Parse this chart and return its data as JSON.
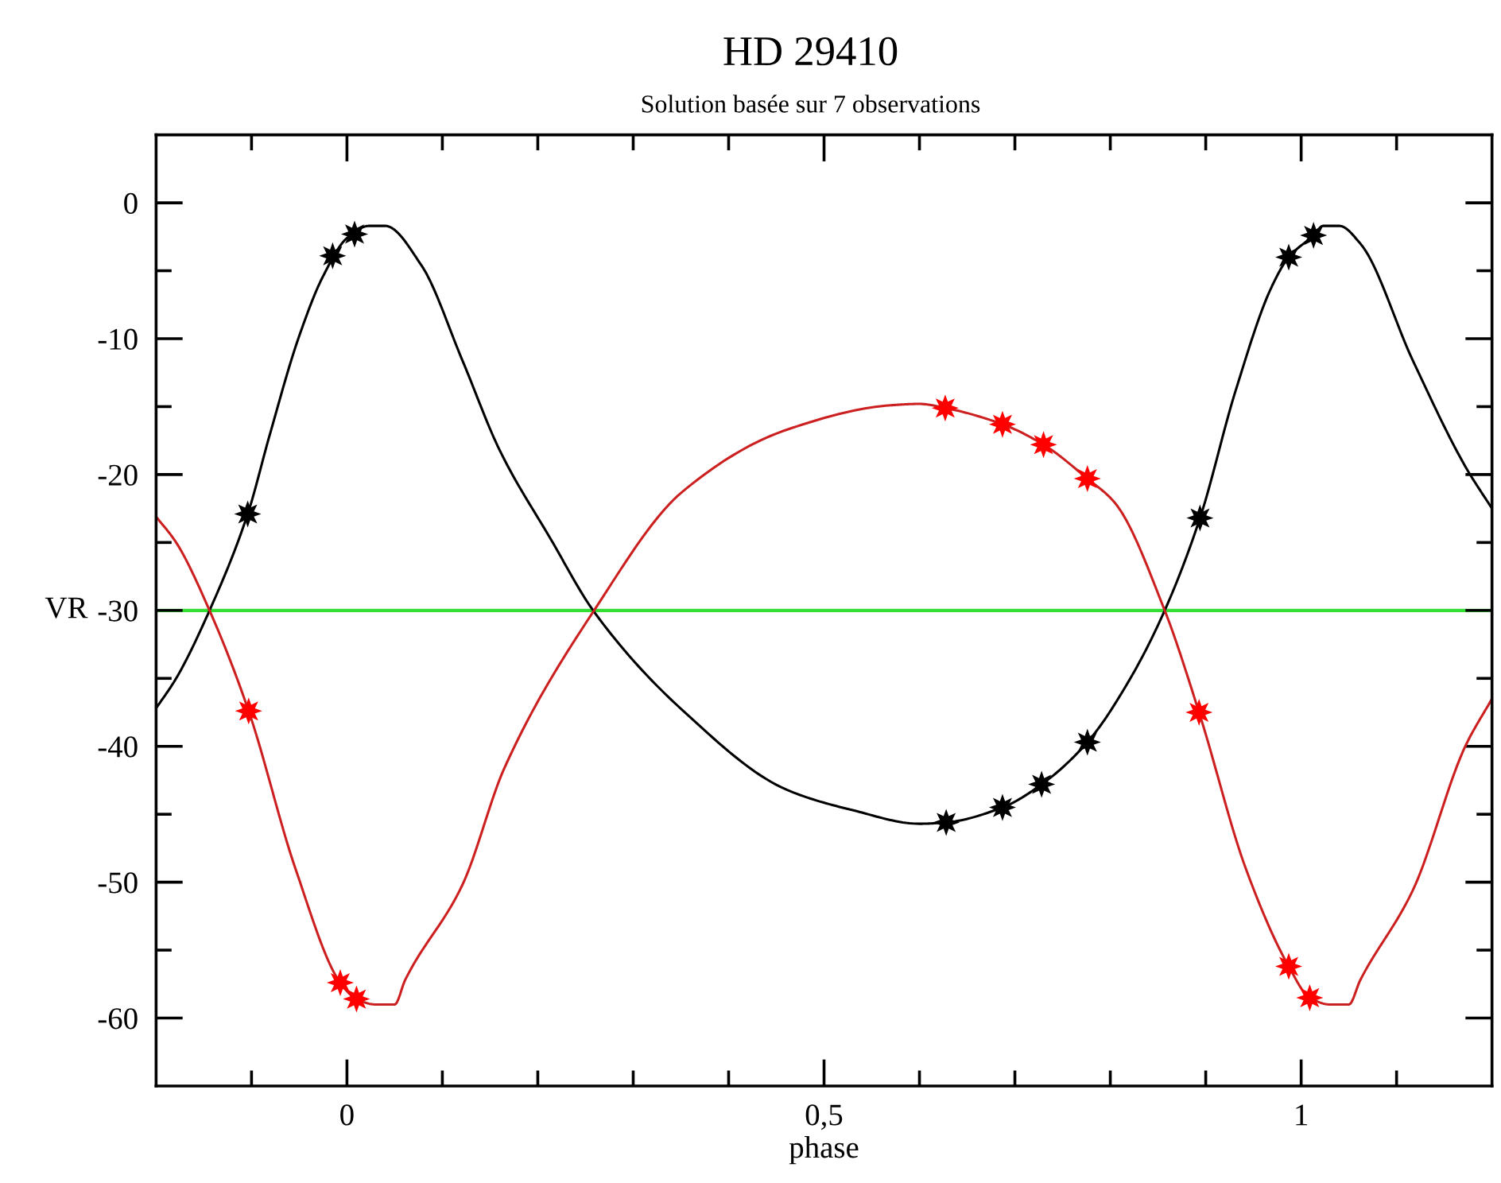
{
  "chart_data": {
    "type": "line",
    "title": "HD 29410",
    "subtitle": "Solution basée sur 7 observations",
    "xlabel": "phase",
    "ylabel": "VR",
    "xlim": [
      -0.2,
      1.2
    ],
    "ylim": [
      -65,
      5
    ],
    "xticks": [
      {
        "value": -0.1,
        "label": null
      },
      0,
      {
        "value": 0.1,
        "label": null
      },
      {
        "value": 0.2,
        "label": null
      },
      {
        "value": 0.3,
        "label": null
      },
      {
        "value": 0.4,
        "label": null
      },
      {
        "value": 0.5,
        "label": "0,5"
      },
      {
        "value": 0.6,
        "label": null
      },
      {
        "value": 0.7,
        "label": null
      },
      {
        "value": 0.8,
        "label": null
      },
      {
        "value": 0.9,
        "label": null
      },
      1,
      {
        "value": 1.1,
        "label": null
      }
    ],
    "yticks": [
      -60,
      {
        "value": -55,
        "label": null
      },
      -50,
      {
        "value": -45,
        "label": null
      },
      -40,
      {
        "value": -35,
        "label": null
      },
      -30,
      {
        "value": -25,
        "label": null
      },
      -20,
      {
        "value": -15,
        "label": null
      },
      -10,
      {
        "value": -5,
        "label": null
      },
      0
    ],
    "grid": false,
    "legend": false,
    "ref_lines": [
      {
        "axis": "y",
        "value": -30,
        "color": "#33dd33"
      }
    ],
    "series": [
      {
        "color": "#000000",
        "marker": "none",
        "x": [
          -0.2,
          -0.179,
          -0.144,
          -0.104,
          -0.081,
          -0.051,
          -0.025,
          0.0,
          0.023,
          0.04,
          0.078,
          0.121,
          0.16,
          0.214,
          0.259,
          0.351,
          0.461,
          0.53,
          0.6,
          0.628,
          0.687,
          0.728,
          0.776,
          0.821,
          0.857,
          0.894,
          0.931,
          0.969,
          0.987,
          1.013,
          1.023,
          1.04,
          1.062,
          1.117,
          1.172,
          1.2
        ],
        "values": [
          -37.2,
          -35.0,
          -30.0,
          -22.9,
          -17.1,
          -10.0,
          -5.4,
          -2.6,
          -1.7,
          -1.7,
          -4.6,
          -11.6,
          -18.2,
          -24.8,
          -30.1,
          -37.3,
          -43.2,
          -44.7,
          -45.7,
          -45.6,
          -44.5,
          -42.8,
          -39.7,
          -35.0,
          -30.0,
          -23.2,
          -13.9,
          -6.2,
          -4.0,
          -2.4,
          -1.7,
          -1.7,
          -3.0,
          -11.6,
          -19.4,
          -22.5
        ]
      },
      {
        "type": "scatter",
        "color": "#000000",
        "marker": "star",
        "x": [
          -0.104,
          -0.015,
          0.008,
          0.628,
          0.687,
          0.728,
          0.776,
          0.894,
          0.987,
          1.013
        ],
        "values": [
          -22.9,
          -3.9,
          -2.3,
          -45.6,
          -44.5,
          -42.8,
          -39.7,
          -23.2,
          -4.0,
          -2.4
        ]
      },
      {
        "color": "#cc2020",
        "marker": "none",
        "x": [
          -0.2,
          -0.179,
          -0.144,
          -0.103,
          -0.054,
          -0.007,
          0.01,
          0.03,
          0.05,
          0.061,
          0.121,
          0.165,
          0.259,
          0.351,
          0.461,
          0.57,
          0.6,
          0.627,
          0.687,
          0.73,
          0.776,
          0.805,
          0.857,
          0.893,
          0.942,
          0.987,
          1.009,
          1.03,
          1.05,
          1.062,
          1.117,
          1.172,
          1.2
        ],
        "values": [
          -23.1,
          -25.0,
          -30.0,
          -37.4,
          -49.0,
          -57.4,
          -58.6,
          -59.0,
          -59.0,
          -57.2,
          -50.2,
          -41.6,
          -30.0,
          -21.3,
          -16.7,
          -14.9,
          -14.8,
          -15.1,
          -16.3,
          -17.8,
          -20.3,
          -22.1,
          -30.0,
          -37.5,
          -49.0,
          -56.2,
          -58.5,
          -59.0,
          -59.0,
          -57.2,
          -50.6,
          -40.0,
          -36.5
        ]
      },
      {
        "type": "scatter",
        "color": "#ff0000",
        "marker": "star",
        "x": [
          -0.103,
          -0.007,
          0.01,
          0.627,
          0.687,
          0.73,
          0.776,
          0.893,
          0.987,
          1.009
        ],
        "values": [
          -37.4,
          -57.4,
          -58.6,
          -15.1,
          -16.3,
          -17.8,
          -20.3,
          -37.5,
          -56.2,
          -58.5
        ]
      }
    ]
  }
}
